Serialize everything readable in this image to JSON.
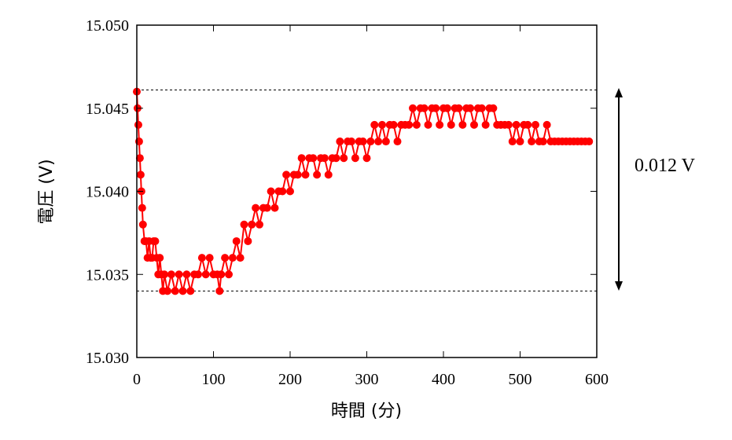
{
  "chart_data": {
    "type": "scatter",
    "xlabel": "時間 (分)",
    "ylabel": "電圧 (V)",
    "xlim": [
      0,
      600
    ],
    "ylim": [
      15.03,
      15.05
    ],
    "x_ticks": [
      "0",
      "100",
      "200",
      "300",
      "400",
      "500",
      "600"
    ],
    "y_ticks": [
      "15.030",
      "15.035",
      "15.040",
      "15.045",
      "15.050"
    ],
    "grid": false,
    "legend": "none",
    "series_color": "#ff0000",
    "reference_lines": [
      15.0461,
      15.034
    ],
    "annotation": "0.012 V",
    "series": [
      {
        "x": [
          0,
          1,
          2,
          3,
          4,
          5,
          6,
          7,
          8,
          10,
          12,
          14,
          16,
          18,
          20,
          22,
          24,
          26,
          28,
          30,
          32,
          34,
          36,
          40,
          45,
          50,
          55,
          60,
          65,
          70,
          75,
          80,
          85,
          90,
          95,
          100,
          105,
          108,
          110,
          115,
          120,
          125,
          130,
          135,
          140,
          145,
          150,
          155,
          160,
          165,
          170,
          175,
          180,
          185,
          190,
          195,
          200,
          205,
          210,
          215,
          220,
          225,
          230,
          235,
          240,
          245,
          250,
          255,
          260,
          265,
          270,
          275,
          280,
          285,
          290,
          295,
          300,
          305,
          310,
          315,
          320,
          325,
          330,
          335,
          340,
          345,
          350,
          355,
          360,
          365,
          370,
          375,
          380,
          385,
          390,
          395,
          400,
          405,
          410,
          415,
          420,
          425,
          430,
          435,
          440,
          445,
          450,
          455,
          460,
          465,
          470,
          475,
          480,
          485,
          490,
          495,
          500,
          505,
          510,
          515,
          520,
          525,
          530,
          535,
          540,
          545,
          550,
          555,
          560,
          565,
          570,
          575,
          580,
          585,
          590
        ],
        "y": [
          15.046,
          15.045,
          15.044,
          15.043,
          15.042,
          15.041,
          15.04,
          15.039,
          15.038,
          15.037,
          15.037,
          15.036,
          15.037,
          15.036,
          15.036,
          15.037,
          15.037,
          15.036,
          15.035,
          15.036,
          15.035,
          15.034,
          15.035,
          15.034,
          15.035,
          15.034,
          15.035,
          15.034,
          15.035,
          15.034,
          15.035,
          15.035,
          15.036,
          15.035,
          15.036,
          15.035,
          15.035,
          15.034,
          15.035,
          15.036,
          15.035,
          15.036,
          15.037,
          15.036,
          15.038,
          15.037,
          15.038,
          15.039,
          15.038,
          15.039,
          15.039,
          15.04,
          15.039,
          15.04,
          15.04,
          15.041,
          15.04,
          15.041,
          15.041,
          15.042,
          15.041,
          15.042,
          15.042,
          15.041,
          15.042,
          15.042,
          15.041,
          15.042,
          15.042,
          15.043,
          15.042,
          15.043,
          15.043,
          15.042,
          15.043,
          15.043,
          15.042,
          15.043,
          15.044,
          15.043,
          15.044,
          15.043,
          15.044,
          15.044,
          15.043,
          15.044,
          15.044,
          15.044,
          15.045,
          15.044,
          15.045,
          15.045,
          15.044,
          15.045,
          15.045,
          15.044,
          15.045,
          15.045,
          15.044,
          15.045,
          15.045,
          15.044,
          15.045,
          15.045,
          15.044,
          15.045,
          15.045,
          15.044,
          15.045,
          15.045,
          15.044,
          15.044,
          15.044,
          15.044,
          15.043,
          15.044,
          15.043,
          15.044,
          15.044,
          15.043,
          15.044,
          15.043,
          15.043,
          15.044,
          15.043,
          15.043,
          15.043,
          15.043,
          15.043,
          15.043,
          15.043,
          15.043,
          15.043,
          15.043,
          15.043
        ]
      }
    ]
  }
}
